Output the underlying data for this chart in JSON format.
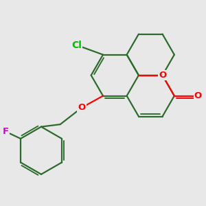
{
  "background_color": "#E8E8E8",
  "bond_color": "#2d6b2d",
  "bond_width": 1.6,
  "atom_colors": {
    "O": "#FF0000",
    "Cl": "#00BB00",
    "F": "#CC00CC",
    "C": "#2d6b2d"
  },
  "font_size_atom": 9.5,
  "dbo": 0.055,
  "bl": 1.0
}
